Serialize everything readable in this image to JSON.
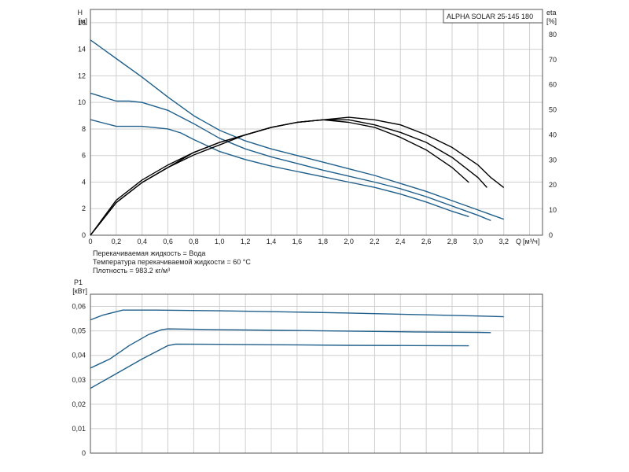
{
  "chart_data": [
    {
      "type": "line",
      "title": "ALPHA SOLAR 25-145  180",
      "x_axis": {
        "label": "Q",
        "unit": "[м³/ч]",
        "range": [
          0,
          3.5
        ],
        "ticks": [
          "0",
          "0,2",
          "0,4",
          "0,6",
          "0,8",
          "1,0",
          "1,2",
          "1,4",
          "1,6",
          "1,8",
          "2,0",
          "2,2",
          "2,4",
          "2,6",
          "2,8",
          "3,0",
          "3,2"
        ]
      },
      "y_left": {
        "label": "H",
        "unit": "[м]",
        "range": [
          0,
          17
        ],
        "ticks": [
          "0",
          "2",
          "4",
          "6",
          "8",
          "10",
          "12",
          "14",
          "16"
        ]
      },
      "y_right": {
        "label": "eta",
        "unit": "[%]",
        "range": [
          0,
          90
        ],
        "ticks": [
          "0",
          "10",
          "20",
          "30",
          "40",
          "50",
          "60",
          "70",
          "80"
        ]
      },
      "grid": true,
      "notes": [
        "Перекачиваемая жидкость = Вода",
        "Температура перекачиваемой жидкости = 60 °C",
        "Плотность = 983.2 кг/м³"
      ],
      "series": [
        {
          "axis": "left",
          "color": "#1f5f8b",
          "points": [
            [
              0,
              14.7
            ],
            [
              0.2,
              13.3
            ],
            [
              0.4,
              11.9
            ],
            [
              0.6,
              10.4
            ],
            [
              0.8,
              9.0
            ],
            [
              1.0,
              7.9
            ],
            [
              1.2,
              7.1
            ],
            [
              1.4,
              6.5
            ],
            [
              1.6,
              6.0
            ],
            [
              1.8,
              5.5
            ],
            [
              2.0,
              5.0
            ],
            [
              2.2,
              4.5
            ],
            [
              2.4,
              3.9
            ],
            [
              2.6,
              3.3
            ],
            [
              2.8,
              2.6
            ],
            [
              3.0,
              1.9
            ],
            [
              3.1,
              1.55
            ],
            [
              3.2,
              1.2
            ]
          ]
        },
        {
          "axis": "left",
          "color": "#1f5f8b",
          "points": [
            [
              0,
              10.7
            ],
            [
              0.2,
              10.1
            ],
            [
              0.3,
              10.1
            ],
            [
              0.4,
              10.0
            ],
            [
              0.6,
              9.4
            ],
            [
              0.8,
              8.4
            ],
            [
              1.0,
              7.3
            ],
            [
              1.2,
              6.5
            ],
            [
              1.4,
              5.9
            ],
            [
              1.6,
              5.4
            ],
            [
              1.8,
              4.9
            ],
            [
              2.0,
              4.45
            ],
            [
              2.2,
              4.0
            ],
            [
              2.4,
              3.5
            ],
            [
              2.6,
              2.9
            ],
            [
              2.8,
              2.2
            ],
            [
              3.0,
              1.5
            ],
            [
              3.1,
              1.1
            ]
          ]
        },
        {
          "axis": "left",
          "color": "#1f5f8b",
          "points": [
            [
              0,
              8.7
            ],
            [
              0.2,
              8.2
            ],
            [
              0.4,
              8.2
            ],
            [
              0.6,
              8.0
            ],
            [
              0.7,
              7.7
            ],
            [
              0.8,
              7.2
            ],
            [
              1.0,
              6.3
            ],
            [
              1.2,
              5.7
            ],
            [
              1.4,
              5.2
            ],
            [
              1.6,
              4.8
            ],
            [
              1.8,
              4.4
            ],
            [
              2.0,
              4.0
            ],
            [
              2.2,
              3.6
            ],
            [
              2.4,
              3.1
            ],
            [
              2.6,
              2.5
            ],
            [
              2.8,
              1.8
            ],
            [
              2.93,
              1.4
            ]
          ]
        },
        {
          "axis": "right",
          "color": "#000000",
          "points": [
            [
              0,
              0
            ],
            [
              0.2,
              14
            ],
            [
              0.4,
              22
            ],
            [
              0.6,
              28
            ],
            [
              0.8,
              33
            ],
            [
              1.0,
              37
            ],
            [
              1.2,
              40
            ],
            [
              1.4,
              43
            ],
            [
              1.6,
              45
            ],
            [
              1.8,
              46
            ],
            [
              2.0,
              47
            ],
            [
              2.2,
              46
            ],
            [
              2.4,
              44
            ],
            [
              2.6,
              40
            ],
            [
              2.8,
              35
            ],
            [
              3.0,
              28
            ],
            [
              3.1,
              23
            ],
            [
              3.2,
              19
            ]
          ]
        },
        {
          "axis": "right",
          "color": "#000000",
          "points": [
            [
              0,
              0
            ],
            [
              0.2,
              13
            ],
            [
              0.4,
              21
            ],
            [
              0.6,
              27
            ],
            [
              0.8,
              32
            ],
            [
              1.0,
              36
            ],
            [
              1.2,
              40
            ],
            [
              1.4,
              43
            ],
            [
              1.6,
              45
            ],
            [
              1.8,
              46
            ],
            [
              2.0,
              46
            ],
            [
              2.2,
              44
            ],
            [
              2.4,
              41
            ],
            [
              2.6,
              37
            ],
            [
              2.8,
              31
            ],
            [
              3.0,
              23
            ],
            [
              3.07,
              19
            ]
          ]
        },
        {
          "axis": "right",
          "color": "#000000",
          "points": [
            [
              0,
              0
            ],
            [
              0.2,
              13
            ],
            [
              0.4,
              21
            ],
            [
              0.6,
              27
            ],
            [
              0.8,
              33
            ],
            [
              1.0,
              37
            ],
            [
              1.2,
              40
            ],
            [
              1.4,
              43
            ],
            [
              1.6,
              45
            ],
            [
              1.8,
              46
            ],
            [
              2.0,
              45
            ],
            [
              2.2,
              43
            ],
            [
              2.4,
              39
            ],
            [
              2.6,
              34
            ],
            [
              2.8,
              27
            ],
            [
              2.93,
              21
            ]
          ]
        }
      ]
    },
    {
      "type": "line",
      "x_axis": {
        "range": [
          0,
          3.5
        ]
      },
      "y_left": {
        "label": "P1",
        "unit": "[кВт]",
        "range": [
          0,
          0.065
        ],
        "ticks": [
          "0",
          "0,01",
          "0,02",
          "0,03",
          "0,04",
          "0,05",
          "0,06"
        ]
      },
      "grid": true,
      "series": [
        {
          "axis": "left",
          "color": "#1f5f8b",
          "points": [
            [
              0,
              0.0545
            ],
            [
              0.1,
              0.0565
            ],
            [
              0.25,
              0.0585
            ],
            [
              0.5,
              0.0585
            ],
            [
              1.0,
              0.0582
            ],
            [
              1.5,
              0.0578
            ],
            [
              2.0,
              0.0573
            ],
            [
              2.5,
              0.0567
            ],
            [
              3.0,
              0.0561
            ],
            [
              3.2,
              0.0558
            ]
          ]
        },
        {
          "axis": "left",
          "color": "#1f5f8b",
          "points": [
            [
              0,
              0.0348
            ],
            [
              0.15,
              0.0385
            ],
            [
              0.3,
              0.044
            ],
            [
              0.45,
              0.0485
            ],
            [
              0.55,
              0.0505
            ],
            [
              0.6,
              0.0508
            ],
            [
              1.0,
              0.0505
            ],
            [
              1.5,
              0.0502
            ],
            [
              2.0,
              0.0499
            ],
            [
              2.5,
              0.0496
            ],
            [
              3.0,
              0.0494
            ],
            [
              3.1,
              0.0493
            ]
          ]
        },
        {
          "axis": "left",
          "color": "#1f5f8b",
          "points": [
            [
              0,
              0.0265
            ],
            [
              0.2,
              0.0325
            ],
            [
              0.4,
              0.0385
            ],
            [
              0.6,
              0.044
            ],
            [
              0.66,
              0.0446
            ],
            [
              1.0,
              0.0445
            ],
            [
              1.5,
              0.0443
            ],
            [
              2.0,
              0.0441
            ],
            [
              2.5,
              0.044
            ],
            [
              2.93,
              0.0439
            ]
          ]
        }
      ]
    }
  ]
}
